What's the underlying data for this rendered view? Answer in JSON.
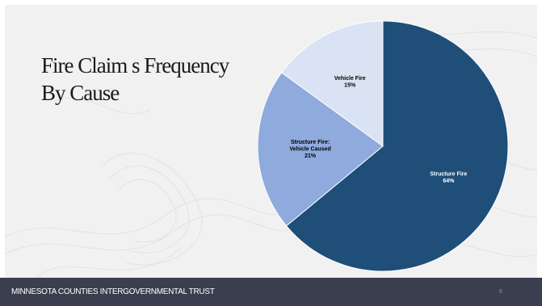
{
  "slide": {
    "title_line1": "Fire Claim s Frequency",
    "title_line2": "By Cause",
    "footer_text": "MINNESOTA COUNTIES INTERGOVERNMENTAL TRUST",
    "page_number": "6"
  },
  "colors": {
    "panel_bg": "#f1f1f1",
    "footer_bg": "#3a3e4f",
    "slice_structure_fire": "#1f4e79",
    "slice_structure_vehicle": "#8faadc",
    "slice_vehicle_fire": "#dae3f3"
  },
  "chart_data": {
    "type": "pie",
    "title": "",
    "slices": [
      {
        "label": "Structure Fire",
        "label_lines": [
          "Structure Fire"
        ],
        "percent_label": "64%",
        "value": 64,
        "color": "#1f4e79",
        "text_color": "#ffffff"
      },
      {
        "label": "Structure Fire: Vehicle Caused",
        "label_lines": [
          "Structure Fire:",
          "Vehicle Caused"
        ],
        "percent_label": "21%",
        "value": 21,
        "color": "#8faadc",
        "text_color": "#000000"
      },
      {
        "label": "Vehicle Fire",
        "label_lines": [
          "Vehicle Fire"
        ],
        "percent_label": "15%",
        "value": 15,
        "color": "#dae3f3",
        "text_color": "#000000"
      }
    ],
    "start_angle_deg": 0,
    "direction": "clockwise",
    "legend": "none"
  }
}
